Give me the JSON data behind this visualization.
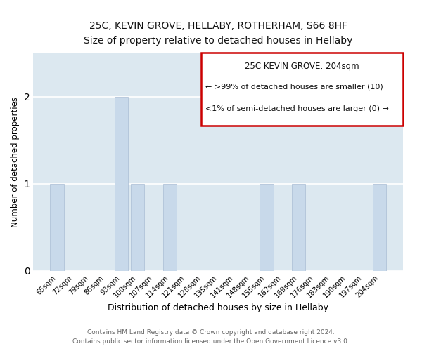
{
  "title": "25C, KEVIN GROVE, HELLABY, ROTHERHAM, S66 8HF",
  "subtitle": "Size of property relative to detached houses in Hellaby",
  "xlabel": "Distribution of detached houses by size in Hellaby",
  "ylabel": "Number of detached properties",
  "categories": [
    "65sqm",
    "72sqm",
    "79sqm",
    "86sqm",
    "93sqm",
    "100sqm",
    "107sqm",
    "114sqm",
    "121sqm",
    "128sqm",
    "135sqm",
    "141sqm",
    "148sqm",
    "155sqm",
    "162sqm",
    "169sqm",
    "176sqm",
    "183sqm",
    "190sqm",
    "197sqm",
    "204sqm"
  ],
  "values": [
    1,
    0,
    0,
    0,
    2,
    1,
    0,
    1,
    0,
    0,
    0,
    0,
    0,
    1,
    0,
    1,
    0,
    0,
    0,
    0,
    1
  ],
  "bar_color": "#c8d9ea",
  "bar_edgecolor": "#aabdd4",
  "ylim": [
    0,
    2.5
  ],
  "yticks": [
    0,
    1,
    2
  ],
  "annotation_title": "25C KEVIN GROVE: 204sqm",
  "annotation_line1": "← >99% of detached houses are smaller (10)",
  "annotation_line2": "<1% of semi-detached houses are larger (0) →",
  "annotation_box_edgecolor": "#cc0000",
  "footer_line1": "Contains HM Land Registry data © Crown copyright and database right 2024.",
  "footer_line2": "Contains public sector information licensed under the Open Government Licence v3.0.",
  "background_color": "#ffffff",
  "grid_color": "#ffffff",
  "plot_bg_color": "#dce8f0"
}
